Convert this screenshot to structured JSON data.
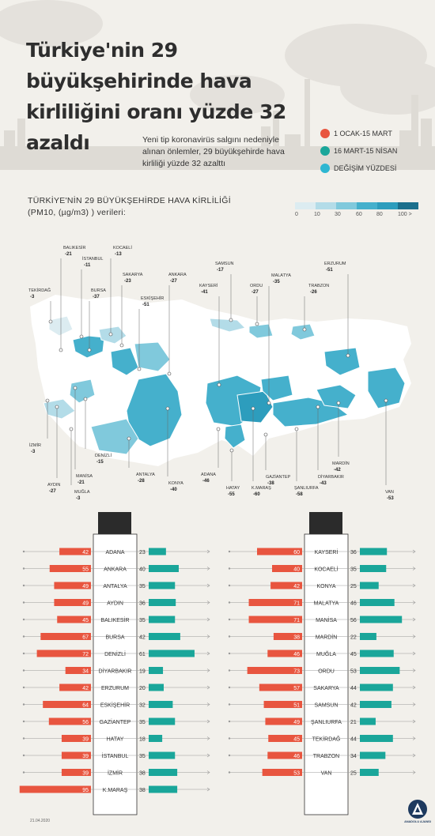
{
  "title": "Türkiye'nin 29 büyükşehirinde hava kirliliğini oranı yüzde 32 azaldı",
  "subtitle": "Yeni tip koronavirüs salgını nedeniyle alınan önlemler, 29 büyükşehirde hava kirliliği yüzde 32 azalttı",
  "legend": [
    {
      "label": "1 OCAK-15 MART",
      "color": "#e8553f"
    },
    {
      "label": "16 MART-15 NİSAN",
      "color": "#1aa69a"
    },
    {
      "label": "DEĞİŞİM YÜZDESİ",
      "color": "#2eb6d1"
    }
  ],
  "map_title": "TÜRKİYE'NİN 29 BÜYÜKŞEHİRDE HAVA KİRLİLİĞİ (PM10, (µg/m3) ) verileri:",
  "scale": {
    "colors": [
      "#dcecf1",
      "#b3dce8",
      "#80c9dc",
      "#45b0cc",
      "#2d9dbd",
      "#1b6f8c"
    ],
    "ticks": [
      "0",
      "10",
      "30",
      "60",
      "80",
      "100 >"
    ]
  },
  "map_labels": [
    {
      "name": "BALIKESİR",
      "value": "-21"
    },
    {
      "name": "İSTANBUL",
      "value": "-11"
    },
    {
      "name": "KOCAELİ",
      "value": "-13"
    },
    {
      "name": "TEKİRDAĞ",
      "value": "-3"
    },
    {
      "name": "BURSA",
      "value": "-37"
    },
    {
      "name": "SAKARYA",
      "value": "-23"
    },
    {
      "name": "ESKİŞEHİR",
      "value": "-51"
    },
    {
      "name": "ANKARA",
      "value": "-27"
    },
    {
      "name": "SAMSUN",
      "value": "-17"
    },
    {
      "name": "KAYSERİ",
      "value": "-41"
    },
    {
      "name": "ORDU",
      "value": "-27"
    },
    {
      "name": "MALATYA",
      "value": "-35"
    },
    {
      "name": "TRABZON",
      "value": "-26"
    },
    {
      "name": "ERZURUM",
      "value": "-51"
    },
    {
      "name": "İZMİR",
      "value": "-3"
    },
    {
      "name": "AYDIN",
      "value": "-27"
    },
    {
      "name": "MANİSA",
      "value": "-21"
    },
    {
      "name": "MUĞLA",
      "value": "-3"
    },
    {
      "name": "DENİZLİ",
      "value": "-15"
    },
    {
      "name": "ANTALYA",
      "value": "-28"
    },
    {
      "name": "KONYA",
      "value": "-40"
    },
    {
      "name": "ADANA",
      "value": "-46"
    },
    {
      "name": "HATAY",
      "value": "-55"
    },
    {
      "name": "K.MARAŞ",
      "value": "-60"
    },
    {
      "name": "GAZİANTEP",
      "value": "-38"
    },
    {
      "name": "ŞANLIURFA",
      "value": "-58"
    },
    {
      "name": "DİYARBAKIR",
      "value": "-43"
    },
    {
      "name": "MARDİN",
      "value": "-42"
    },
    {
      "name": "VAN",
      "value": "-53"
    }
  ],
  "chart_data": [
    {
      "type": "bar",
      "categories": [
        "ADANA",
        "ANKARA",
        "ANTALYA",
        "AYDIN",
        "BALIKESİR",
        "BURSA",
        "DENİZLİ",
        "DİYARBAKIR",
        "ERZURUM",
        "ESKİŞEHİR",
        "GAZİANTEP",
        "HATAY",
        "İSTANBUL",
        "İZMİR",
        "K.MARAŞ"
      ],
      "series": [
        {
          "values": [
            42,
            55,
            49,
            49,
            45,
            67,
            72,
            34,
            42,
            64,
            56,
            39,
            39,
            39,
            95
          ]
        },
        {
          "values": [
            23,
            40,
            35,
            36,
            35,
            42,
            61,
            19,
            20,
            32,
            35,
            18,
            35,
            38,
            38
          ]
        }
      ]
    },
    {
      "type": "bar",
      "categories": [
        "KAYSERİ",
        "KOCAELİ",
        "KONYA",
        "MALATYA",
        "MANİSA",
        "MARDİN",
        "MUĞLA",
        "ORDU",
        "SAKARYA",
        "SAMSUN",
        "ŞANLIURFA",
        "TEKİRDAĞ",
        "TRABZON",
        "VAN"
      ],
      "series": [
        {
          "values": [
            60,
            40,
            42,
            71,
            71,
            38,
            46,
            73,
            57,
            51,
            49,
            45,
            46,
            53
          ]
        },
        {
          "values": [
            36,
            35,
            25,
            46,
            56,
            22,
            45,
            53,
            44,
            42,
            21,
            44,
            34,
            25
          ]
        }
      ]
    }
  ],
  "footer_date": "21.04.2020",
  "logo_text": "ANADOLU AJANSI"
}
